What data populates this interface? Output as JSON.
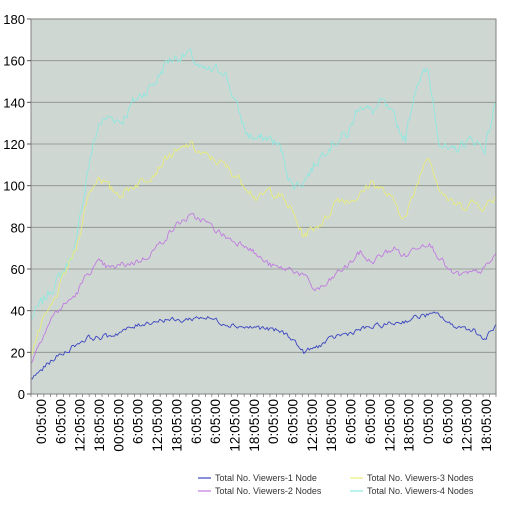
{
  "chart_data": {
    "type": "line",
    "title": "",
    "xlabel": "",
    "ylabel": "",
    "ylim": [
      0,
      180
    ],
    "yticks": [
      0,
      20,
      40,
      60,
      80,
      100,
      120,
      140,
      160,
      180
    ],
    "x_tick_labels": [
      "0:05:00",
      "6:05:00",
      "12:05:00",
      "18:05:00",
      "00:05:00",
      "6:05:00",
      "12:05:00",
      "18:05:00",
      "6:05:00",
      "6:05:00",
      "12:05:00",
      "18:05:00",
      "0:05:00",
      "6:05:00",
      "12:05:00",
      "18:05:00",
      "6:05:00",
      "6:05:00",
      "12:05:00",
      "18:05:00",
      "0:05:00",
      "6:05:00",
      "12:05:00",
      "18:05:00"
    ],
    "grid": true,
    "legend_position": "bottom-right",
    "plot_background": "#cfd7d2",
    "noise_amplitude": [
      2.0,
      2.6,
      3.5,
      4.5
    ],
    "series": [
      {
        "name": "Total No. Viewers-1 Node",
        "color": "#3b46c0",
        "values": [
          7,
          12,
          17,
          20,
          24,
          27,
          27,
          28,
          30,
          32,
          34,
          35,
          36,
          35,
          36,
          37,
          36,
          34,
          33,
          32,
          32,
          31,
          30,
          27,
          20,
          22,
          25,
          28,
          29,
          31,
          32,
          33,
          34,
          35,
          37,
          38,
          38,
          33,
          32,
          31,
          26,
          33
        ]
      },
      {
        "name": "Total No. Viewers-2 Nodes",
        "color": "#c07ce0",
        "values": [
          15,
          28,
          38,
          43,
          48,
          58,
          63,
          60,
          62,
          63,
          65,
          70,
          76,
          82,
          85,
          84,
          80,
          76,
          73,
          72,
          66,
          62,
          60,
          60,
          57,
          50,
          52,
          58,
          62,
          68,
          63,
          67,
          70,
          66,
          71,
          73,
          66,
          58,
          57,
          58,
          60,
          67
        ]
      },
      {
        "name": "Total No. Viewers-3 Nodes",
        "color": "#e8ec7c",
        "values": [
          20,
          34,
          44,
          58,
          70,
          95,
          105,
          98,
          96,
          100,
          103,
          107,
          114,
          116,
          120,
          115,
          113,
          110,
          105,
          100,
          93,
          98,
          95,
          88,
          76,
          80,
          84,
          94,
          93,
          95,
          102,
          98,
          92,
          84,
          100,
          116,
          99,
          92,
          90,
          92,
          90,
          95
        ]
      },
      {
        "name": "Total No. Viewers-4 Nodes",
        "color": "#8ee8e0",
        "values": [
          36,
          44,
          52,
          60,
          72,
          108,
          130,
          133,
          131,
          140,
          145,
          150,
          160,
          162,
          163,
          155,
          155,
          156,
          140,
          125,
          122,
          123,
          118,
          100,
          102,
          110,
          118,
          122,
          125,
          140,
          135,
          140,
          132,
          122,
          150,
          155,
          122,
          115,
          120,
          122,
          118,
          140
        ]
      }
    ]
  }
}
